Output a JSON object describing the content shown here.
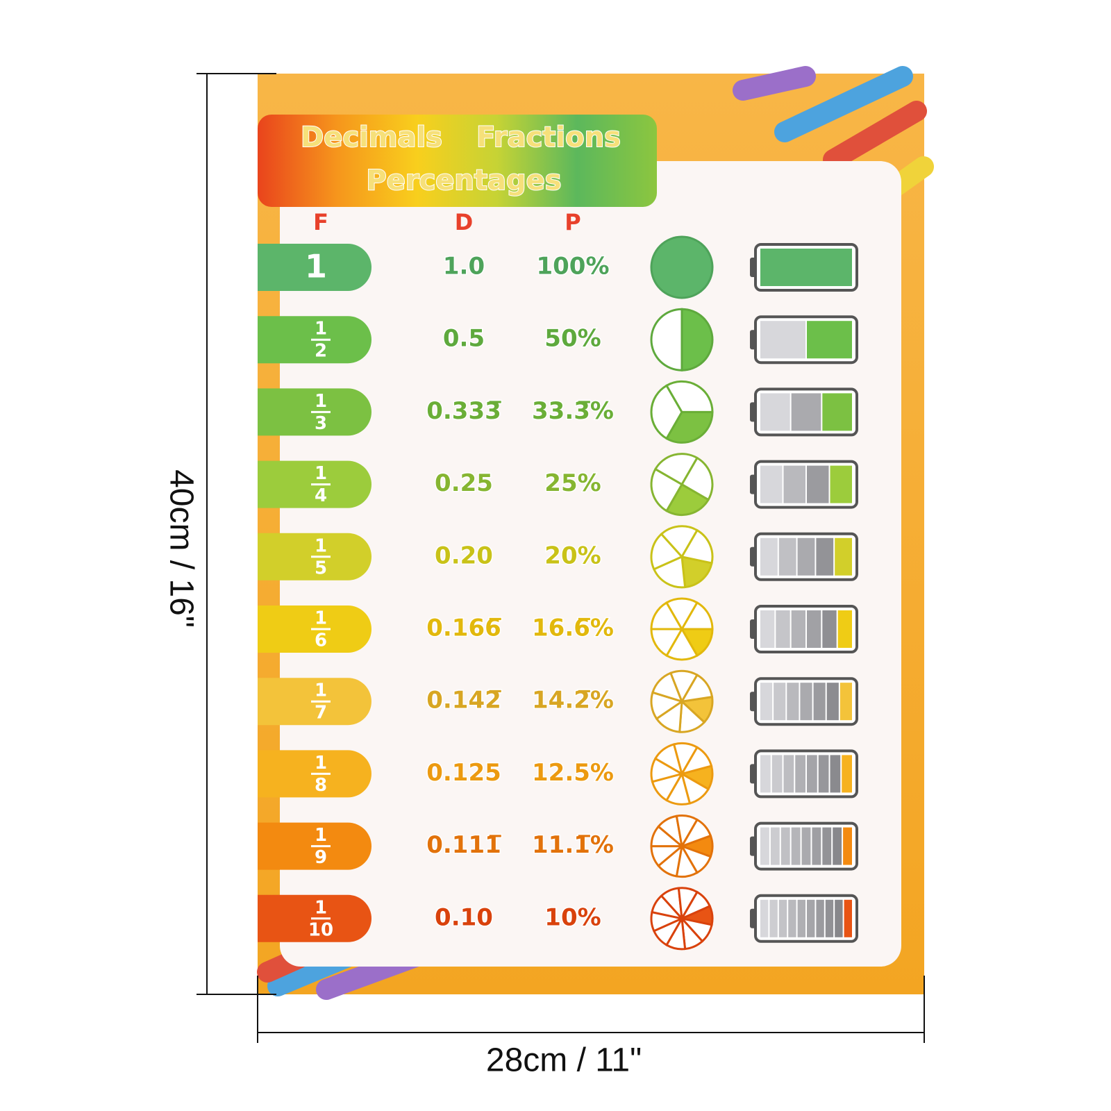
{
  "header": {
    "title_words": [
      "Decimals",
      "Fractions",
      "Percentages"
    ]
  },
  "columns": [
    "F",
    "D",
    "P"
  ],
  "rows": [
    {
      "fraction": {
        "numerator": "1"
      },
      "decimal": "1.0",
      "percent": "100%"
    },
    {
      "fraction": {
        "numerator": "1",
        "denominator": "2"
      },
      "decimal": "0.5",
      "percent": "50%"
    },
    {
      "fraction": {
        "numerator": "1",
        "denominator": "3"
      },
      "decimal": "0.333̅",
      "percent": "33.3̅%"
    },
    {
      "fraction": {
        "numerator": "1",
        "denominator": "4"
      },
      "decimal": "0.25",
      "percent": "25%"
    },
    {
      "fraction": {
        "numerator": "1",
        "denominator": "5"
      },
      "decimal": "0.20",
      "percent": "20%"
    },
    {
      "fraction": {
        "numerator": "1",
        "denominator": "6"
      },
      "decimal": "0.166̅",
      "percent": "16.6̅%"
    },
    {
      "fraction": {
        "numerator": "1",
        "denominator": "7"
      },
      "decimal": "0.142̅",
      "percent": "14.2̅%"
    },
    {
      "fraction": {
        "numerator": "1",
        "denominator": "8"
      },
      "decimal": "0.125",
      "percent": "12.5%"
    },
    {
      "fraction": {
        "numerator": "1",
        "denominator": "9"
      },
      "decimal": "0.111̅",
      "percent": "11.1̅%"
    },
    {
      "fraction": {
        "numerator": "1",
        "denominator": "10"
      },
      "decimal": "0.10",
      "percent": "10%"
    }
  ],
  "dimensions": {
    "height": "40cm / 16\"",
    "width": "28cm / 11\""
  }
}
